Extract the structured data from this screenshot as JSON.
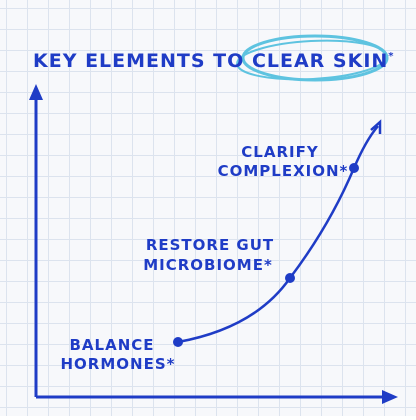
{
  "title": {
    "lead": "KEY ELEMENTS TO",
    "highlight": "CLEAR SKIN",
    "mark": "*"
  },
  "steps": [
    {
      "lines": [
        "BALANCE",
        "HORMONES*"
      ]
    },
    {
      "lines": [
        "RESTORE GUT",
        "MICROBIOME*"
      ]
    },
    {
      "lines": [
        "CLARIFY",
        "COMPLEXION*"
      ]
    }
  ]
}
